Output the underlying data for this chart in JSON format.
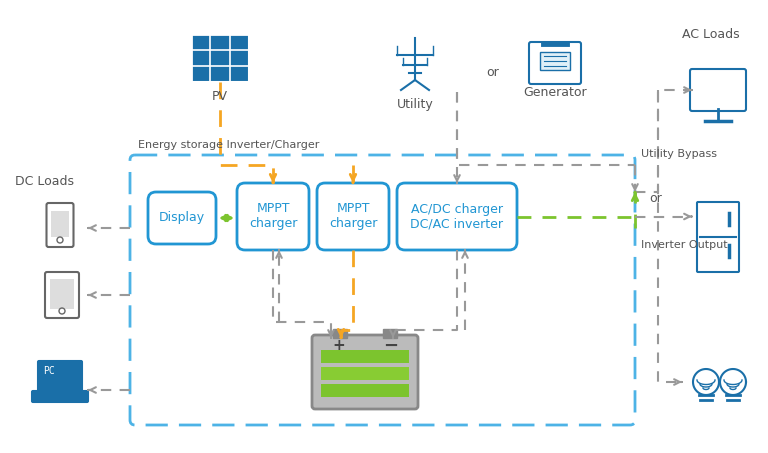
{
  "bg_color": "#ffffff",
  "blue_dark": "#1a6fa8",
  "blue_light": "#2196d3",
  "blue_dashed": "#4db3e6",
  "gray_dashed": "#999999",
  "yellow": "#f5a623",
  "green": "#7cc42e",
  "text_color": "#555555",
  "title": "Energy storage Inverter/Charger",
  "labels": {
    "pv": "PV",
    "utility": "Utility",
    "generator": "Generator",
    "dc_loads": "DC Loads",
    "ac_loads": "AC Loads",
    "display": "Display",
    "mppt1": "MPPT\ncharger",
    "mppt2": "MPPT\ncharger",
    "acdc": "AC/DC charger\nDC/AC inverter",
    "utility_bypass": "Utility Bypass",
    "inverter_output": "Inverter Output",
    "or1": "or",
    "or2": "or"
  }
}
